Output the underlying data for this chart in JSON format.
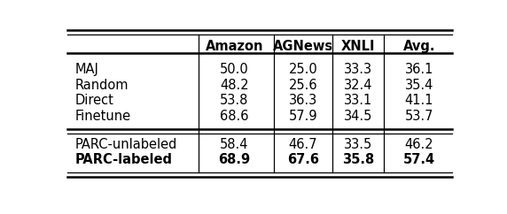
{
  "columns": [
    "",
    "Amazon",
    "AGNews",
    "XNLI",
    "Avg."
  ],
  "rows": [
    [
      "MAJ",
      "50.0",
      "25.0",
      "33.3",
      "36.1",
      false
    ],
    [
      "Random",
      "48.2",
      "25.6",
      "32.4",
      "35.4",
      false
    ],
    [
      "Direct",
      "53.8",
      "36.3",
      "33.1",
      "41.1",
      false
    ],
    [
      "Finetune",
      "68.6",
      "57.9",
      "34.5",
      "53.7",
      false
    ],
    [
      "PARC-unlabeled",
      "58.4",
      "46.7",
      "33.5",
      "46.2",
      false
    ],
    [
      "PARC-labeled",
      "68.9",
      "67.6",
      "35.8",
      "57.4",
      true
    ]
  ],
  "background_color": "#ffffff",
  "font_size": 10.5
}
